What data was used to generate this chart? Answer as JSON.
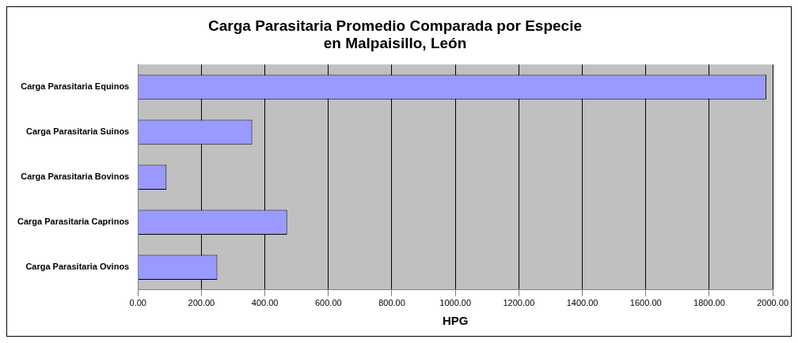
{
  "chart_data": {
    "type": "bar",
    "orientation": "horizontal",
    "title": "Carga Parasitaria Promedio Comparada por Especie en Malpaisillo, León",
    "xlabel": "HPG",
    "categories": [
      "Carga Parasitaria Equinos",
      "Carga Parasitaria Suinos",
      "Carga Parasitaria Bovinos",
      "Carga Parasitaria Caprinos",
      "Carga Parasitaria Ovinos"
    ],
    "values": [
      1980,
      360,
      90,
      470,
      250
    ],
    "color": "#9999ff",
    "xlim": [
      0,
      2000
    ],
    "xticks": [
      {
        "value": 0,
        "label": "0.00"
      },
      {
        "value": 200,
        "label": "200.00"
      },
      {
        "value": 400,
        "label": "400.00"
      },
      {
        "value": 600,
        "label": "600.00"
      },
      {
        "value": 800,
        "label": "800.00"
      },
      {
        "value": 1000,
        "label": "1000.00"
      },
      {
        "value": 1200,
        "label": "1200.00"
      },
      {
        "value": 1400,
        "label": "1400.00"
      },
      {
        "value": 1600,
        "label": "1600.00"
      },
      {
        "value": 1800,
        "label": "1800.00"
      },
      {
        "value": 2000,
        "label": "2000.00"
      }
    ],
    "grid": "x",
    "legend": false
  }
}
